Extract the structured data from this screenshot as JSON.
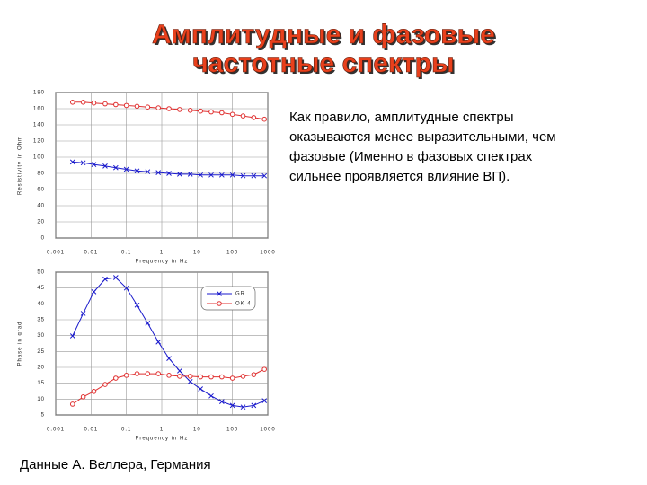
{
  "slide": {
    "title_lines": [
      "Амплитудные и фазовые",
      "частотные спектры"
    ],
    "text_lines": [
      "Как правило, амплитудные спектры",
      "оказываются менее выразительными, чем",
      "фазовые (Именно в фазовых спектрах",
      "сильнее проявляется влияние ВП)."
    ],
    "caption": "Данные А. Веллера, Германия"
  },
  "chart_data": [
    {
      "type": "line",
      "xlabel": "Frequency in Hz",
      "ylabel": "Resistivity in Ohm",
      "xlog": true,
      "grid": true,
      "xlim": [
        0.001,
        1000
      ],
      "xticks": [
        0.001,
        0.01,
        0.1,
        1,
        10,
        100,
        1000
      ],
      "ylim": [
        0,
        180
      ],
      "yticks": [
        0,
        20,
        40,
        60,
        80,
        100,
        120,
        140,
        160,
        180
      ],
      "x": [
        0.003,
        0.006,
        0.012,
        0.025,
        0.05,
        0.1,
        0.2,
        0.4,
        0.8,
        1.6,
        3.2,
        6.4,
        12.5,
        25,
        50,
        100,
        200,
        400,
        800
      ],
      "series": [
        {
          "name": "GR",
          "color": "#1a1acc",
          "marker": "x",
          "values": [
            94,
            93,
            91,
            89,
            87,
            85,
            83,
            82,
            81,
            80,
            79,
            79,
            78,
            78,
            78,
            78,
            77,
            77,
            77
          ]
        },
        {
          "name": "OK 4",
          "color": "#e03030",
          "marker": "o",
          "values": [
            168,
            168,
            167,
            166,
            165,
            164,
            163,
            162,
            161,
            160,
            159,
            158,
            157,
            156,
            155,
            153,
            151,
            149,
            147
          ]
        }
      ]
    },
    {
      "type": "line",
      "xlabel": "Frequency in Hz",
      "ylabel": "Phase in grad",
      "xlog": true,
      "grid": true,
      "legend": "upper right",
      "xlim": [
        0.001,
        1000
      ],
      "xticks": [
        0.001,
        0.01,
        0.1,
        1,
        10,
        100,
        1000
      ],
      "ylim": [
        5,
        50
      ],
      "yticks": [
        5,
        10,
        15,
        20,
        25,
        30,
        35,
        40,
        45,
        50
      ],
      "x": [
        0.003,
        0.006,
        0.012,
        0.025,
        0.05,
        0.1,
        0.2,
        0.4,
        0.8,
        1.6,
        3.2,
        6.4,
        12.5,
        25,
        50,
        100,
        200,
        400,
        800
      ],
      "series": [
        {
          "name": "GR",
          "color": "#1a1acc",
          "marker": "x",
          "values": [
            29.9,
            37,
            43.8,
            47.8,
            48.3,
            45,
            39.6,
            33.9,
            28,
            22.8,
            18.9,
            15.5,
            13.2,
            11,
            9.2,
            8,
            7.5,
            8,
            9.5
          ]
        },
        {
          "name": "OK 4",
          "color": "#e03030",
          "marker": "o",
          "values": [
            8.4,
            10.7,
            12.4,
            14.6,
            16.6,
            17.5,
            18,
            18,
            18,
            17.5,
            17.2,
            17.2,
            17,
            17,
            17,
            16.6,
            17.2,
            17.7,
            19.4
          ]
        }
      ]
    }
  ]
}
